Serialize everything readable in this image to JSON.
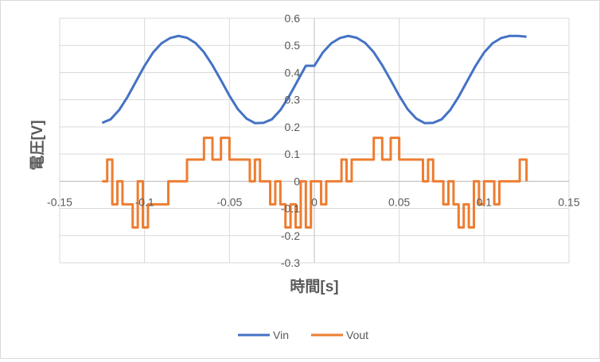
{
  "chart_data": {
    "type": "line",
    "title": "",
    "xlabel": "時間[s]",
    "ylabel": "電圧[V]",
    "xlim": [
      -0.15,
      0.15
    ],
    "ylim": [
      -0.3,
      0.6
    ],
    "x_ticks": [
      -0.15,
      -0.1,
      -0.05,
      0,
      0.05,
      0.1,
      0.15
    ],
    "x_tick_labels": [
      "-0.15",
      "-0.1",
      "-0.05",
      "0",
      "0.05",
      "0.1",
      "0.15"
    ],
    "y_ticks": [
      -0.3,
      -0.2,
      -0.1,
      0,
      0.1,
      0.2,
      0.3,
      0.4,
      0.5,
      0.6
    ],
    "y_tick_labels": [
      "-0.3",
      "-0.2",
      "-0.1",
      "0",
      "0.1",
      "0.2",
      "0.3",
      "0.4",
      "0.5",
      "0.6"
    ],
    "grid": true,
    "legend_position": "bottom",
    "series": [
      {
        "name": "Vin",
        "color": "#4472c4",
        "x": [
          -0.125,
          -0.12,
          -0.115,
          -0.11,
          -0.105,
          -0.1,
          -0.095,
          -0.09,
          -0.085,
          -0.08,
          -0.075,
          -0.07,
          -0.065,
          -0.06,
          -0.055,
          -0.05,
          -0.045,
          -0.04,
          -0.035,
          -0.03,
          -0.025,
          -0.02,
          -0.015,
          -0.01,
          -0.005,
          0,
          0.005,
          0.01,
          0.015,
          0.02,
          0.025,
          0.03,
          0.035,
          0.04,
          0.045,
          0.05,
          0.055,
          0.06,
          0.065,
          0.07,
          0.075,
          0.08,
          0.085,
          0.09,
          0.095,
          0.1,
          0.105,
          0.11,
          0.115,
          0.12,
          0.125
        ],
        "y": [
          0.215,
          0.228,
          0.262,
          0.311,
          0.368,
          0.425,
          0.474,
          0.508,
          0.527,
          0.535,
          0.528,
          0.509,
          0.475,
          0.427,
          0.372,
          0.315,
          0.265,
          0.231,
          0.214,
          0.215,
          0.228,
          0.262,
          0.311,
          0.368,
          0.425,
          0.425,
          0.474,
          0.508,
          0.527,
          0.535,
          0.528,
          0.509,
          0.475,
          0.427,
          0.372,
          0.315,
          0.265,
          0.231,
          0.214,
          0.215,
          0.228,
          0.262,
          0.311,
          0.368,
          0.425,
          0.474,
          0.508,
          0.527,
          0.535,
          0.535,
          0.532
        ]
      },
      {
        "name": "Vout",
        "color": "#ed7d31",
        "x": [
          -0.125,
          -0.122,
          -0.119,
          -0.116,
          -0.113,
          -0.11,
          -0.107,
          -0.104,
          -0.101,
          -0.098,
          -0.095,
          -0.092,
          -0.089,
          -0.086,
          -0.083,
          -0.08,
          -0.075,
          -0.07,
          -0.065,
          -0.06,
          -0.055,
          -0.05,
          -0.047,
          -0.044,
          -0.041,
          -0.038,
          -0.035,
          -0.032,
          -0.029,
          -0.026,
          -0.023,
          -0.02,
          -0.017,
          -0.014,
          -0.011,
          -0.008,
          -0.005,
          -0.002,
          0.001,
          0.004,
          0.007,
          0.01,
          0.013,
          0.016,
          0.019,
          0.022,
          0.025,
          0.03,
          0.035,
          0.04,
          0.045,
          0.05,
          0.055,
          0.058,
          0.061,
          0.064,
          0.067,
          0.07,
          0.073,
          0.076,
          0.079,
          0.082,
          0.085,
          0.088,
          0.091,
          0.094,
          0.097,
          0.1,
          0.103,
          0.106,
          0.109,
          0.112,
          0.115,
          0.118,
          0.121,
          0.125
        ],
        "y": [
          0,
          0.08,
          -0.085,
          0,
          -0.085,
          -0.085,
          -0.17,
          0,
          -0.17,
          -0.085,
          -0.085,
          -0.085,
          -0.085,
          0,
          0,
          0,
          0.08,
          0.08,
          0.16,
          0.08,
          0.16,
          0.08,
          0.08,
          0.08,
          0.08,
          0,
          0.08,
          0,
          0,
          -0.085,
          0,
          -0.085,
          -0.17,
          -0.085,
          -0.17,
          0,
          -0.17,
          0,
          0,
          -0.085,
          0,
          0,
          0,
          0.08,
          0,
          0.08,
          0.08,
          0.08,
          0.16,
          0.08,
          0.16,
          0.08,
          0.08,
          0.08,
          0.08,
          0,
          0.08,
          0,
          0,
          -0.085,
          0,
          -0.085,
          -0.17,
          -0.085,
          -0.17,
          0,
          -0.085,
          0,
          0,
          -0.085,
          0,
          0,
          0,
          0,
          0.08,
          0
        ]
      }
    ]
  }
}
